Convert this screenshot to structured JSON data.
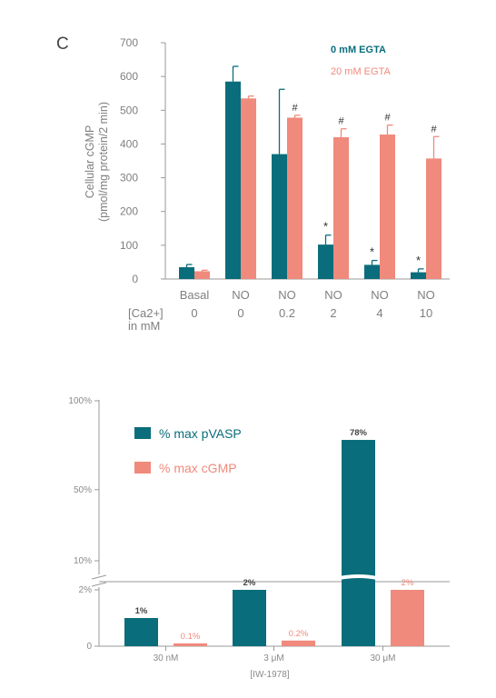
{
  "panel_label": "C",
  "colors": {
    "teal": "#0a6d7b",
    "salmon": "#ef8a7c",
    "axis": "#9a9a9a"
  },
  "chart_data": [
    {
      "type": "bar",
      "ylabel_line1": "Cellular cGMP",
      "ylabel_line2": "(pmol/mg protein/2 min)",
      "ylim": [
        0,
        700
      ],
      "yticks": [
        "0",
        "100",
        "200",
        "300",
        "400",
        "500",
        "600",
        "700"
      ],
      "categories": [
        "Basal",
        "NO",
        "NO",
        "NO",
        "NO",
        "NO"
      ],
      "row2_label_line1": "[Ca2+]",
      "row2_label_line2": "in mM",
      "row2_values": [
        "0",
        "0",
        "0.2",
        "2",
        "4",
        "10"
      ],
      "legend_position": "top-right",
      "series": [
        {
          "name": "0 mM EGTA",
          "color": "#0a6d7b",
          "values": [
            35,
            585,
            370,
            102,
            42,
            20
          ],
          "errors": [
            8,
            45,
            192,
            28,
            13,
            10
          ],
          "markers": [
            "",
            "",
            "",
            "*",
            "*",
            "*"
          ]
        },
        {
          "name": "20 mM EGTA",
          "color": "#ef8a7c",
          "values": [
            23,
            535,
            478,
            420,
            428,
            357
          ],
          "errors": [
            3,
            7,
            7,
            25,
            28,
            65
          ],
          "markers": [
            "",
            "",
            "#",
            "#",
            "#",
            "#"
          ]
        }
      ]
    },
    {
      "type": "bar",
      "yticks": [
        "0",
        "2%",
        "10%",
        "50%",
        "100%"
      ],
      "broken_axis": true,
      "categories": [
        "30 nM",
        "3 μM",
        "30 μM"
      ],
      "xlabel": "[IW-1978]",
      "legend_position": "top-left",
      "series": [
        {
          "name": "% max pVASP",
          "color": "#0a6d7b",
          "values": [
            1,
            2,
            78
          ],
          "labels": [
            "1%",
            "2%",
            "78%"
          ]
        },
        {
          "name": "% max cGMP",
          "color": "#ef8a7c",
          "values": [
            0.1,
            0.2,
            2
          ],
          "labels": [
            "0.1%",
            "0.2%",
            "2%"
          ]
        }
      ]
    }
  ]
}
